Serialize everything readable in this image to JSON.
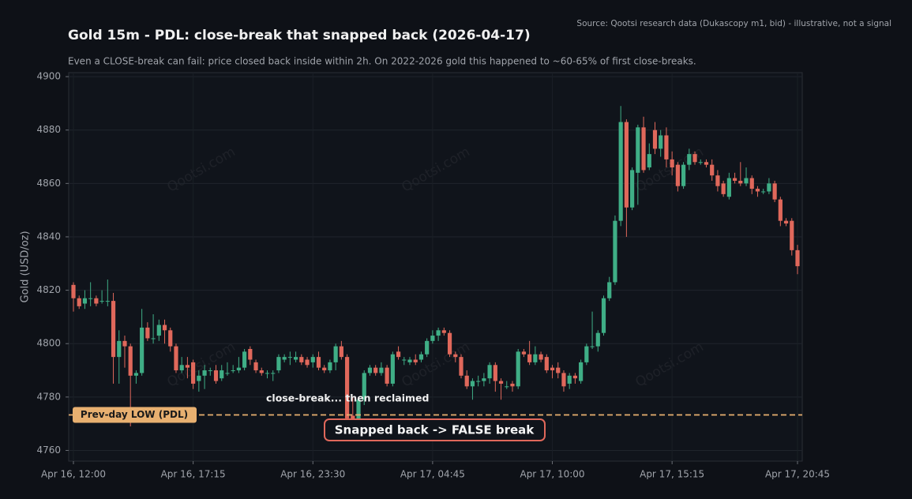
{
  "chart_data": {
    "type": "candlestick",
    "title": "Gold 15m - PDL: close-break that snapped back (2026-04-17)",
    "subtitle": "Even a CLOSE-break can fail: price closed back inside within 2h. On 2022-2026 gold this happened to ~60-65% of first close-breaks.",
    "source": "Source: Qootsi research data (Dukascopy m1, bid) - illustrative, not a signal",
    "watermark": "Qootsi.com",
    "y_label": "Gold (USD/oz)",
    "categories": [
      "Apr 16, 12:00",
      null,
      null,
      null,
      null,
      null,
      null,
      null,
      null,
      null,
      null,
      null,
      null,
      null,
      null,
      null,
      null,
      null,
      null,
      null,
      null,
      "Apr 16, 17:15",
      null,
      null,
      null,
      null,
      null,
      null,
      null,
      null,
      null,
      null,
      null,
      null,
      null,
      null,
      null,
      null,
      null,
      null,
      null,
      null,
      "Apr 16, 23:30",
      null,
      null,
      null,
      null,
      null,
      null,
      null,
      null,
      null,
      null,
      null,
      null,
      null,
      null,
      null,
      null,
      null,
      null,
      null,
      null,
      "Apr 17, 04:45",
      null,
      null,
      null,
      null,
      null,
      null,
      null,
      null,
      null,
      null,
      null,
      null,
      null,
      null,
      null,
      null,
      null,
      null,
      null,
      null,
      "Apr 17, 10:00",
      null,
      null,
      null,
      null,
      null,
      null,
      null,
      null,
      null,
      null,
      null,
      null,
      null,
      null,
      null,
      null,
      null,
      null,
      null,
      null,
      "Apr 17, 15:15",
      null,
      null,
      null,
      null,
      null,
      null,
      null,
      null,
      null,
      null,
      null,
      null,
      null,
      null,
      null,
      null,
      null,
      null,
      null,
      null,
      null,
      "Apr 17, 20:45"
    ],
    "open": [
      4822,
      4817,
      4815,
      4817,
      4817,
      4816,
      4816,
      4816,
      4795,
      4801,
      4799,
      4788,
      4789,
      4806,
      4802,
      4803,
      4807,
      4805,
      4799,
      4790,
      4792,
      4793,
      4786,
      4788,
      4790,
      4790,
      4787,
      4789,
      4790,
      4790,
      4791,
      4798,
      4793,
      4790,
      4789,
      4789,
      4790,
      4794,
      4795,
      4794,
      4795,
      4794,
      4793,
      4795,
      4791,
      4790,
      4793,
      4799,
      4795,
      4773,
      4771,
      4779,
      4789,
      4791,
      4789,
      4791,
      4785,
      4797,
      4794,
      4793,
      4794,
      4794,
      4796,
      4801,
      4803,
      4805,
      4804,
      4796,
      4795,
      4788,
      4784,
      4786,
      4786,
      4787,
      4792,
      4786,
      4784,
      4785,
      4784,
      4797,
      4796,
      4793,
      4796,
      4795,
      4791,
      4791,
      4789,
      4785,
      4788,
      4786,
      4793,
      4799,
      4799,
      4804,
      4817,
      4823,
      4846,
      4883,
      4851,
      4864,
      4881,
      4866,
      4880,
      4873,
      4878,
      4869,
      4867,
      4859,
      4867,
      4871,
      4868,
      4868,
      4867,
      4863,
      4860,
      4855,
      4862,
      4861,
      4860,
      4862,
      4858,
      4857,
      4857,
      4860,
      4854,
      4846,
      4846,
      4835
    ],
    "high": [
      4823,
      4818,
      4820,
      4823,
      4818,
      4820,
      4824,
      4819,
      4805,
      4803,
      4800,
      4790,
      4813,
      4808,
      4811,
      4809,
      4809,
      4806,
      4800,
      4795,
      4795,
      4794,
      4790,
      4792,
      4791,
      4792,
      4792,
      4793,
      4792,
      4795,
      4798,
      4799,
      4794,
      4791,
      4790,
      4790,
      4796,
      4796,
      4797,
      4797,
      4796,
      4795,
      4796,
      4797,
      4792,
      4794,
      4800,
      4801,
      4796,
      4780,
      4780,
      4790,
      4792,
      4792,
      4793,
      4792,
      4797,
      4799,
      4795,
      4795,
      4796,
      4797,
      4802,
      4805,
      4806,
      4806,
      4805,
      4797,
      4796,
      4790,
      4787,
      4788,
      4789,
      4793,
      4793,
      4787,
      4786,
      4786,
      4798,
      4798,
      4801,
      4799,
      4797,
      4796,
      4792,
      4793,
      4790,
      4789,
      4789,
      4794,
      4800,
      4812,
      4805,
      4818,
      4825,
      4848,
      4889,
      4884,
      4866,
      4882,
      4885,
      4875,
      4883,
      4880,
      4881,
      4872,
      4868,
      4868,
      4873,
      4872,
      4869,
      4869,
      4869,
      4865,
      4861,
      4864,
      4864,
      4868,
      4866,
      4863,
      4859,
      4858,
      4862,
      4861,
      4855,
      4847,
      4847,
      4837
    ],
    "low": [
      4812,
      4813,
      4813,
      4814,
      4814,
      4815,
      4814,
      4785,
      4785,
      4791,
      4769,
      4785,
      4788,
      4801,
      4800,
      4801,
      4800,
      4797,
      4789,
      4789,
      4787,
      4783,
      4782,
      4783,
      4788,
      4785,
      4786,
      4788,
      4789,
      4789,
      4790,
      4792,
      4789,
      4788,
      4787,
      4786,
      4789,
      4793,
      4792,
      4793,
      4792,
      4791,
      4791,
      4790,
      4789,
      4789,
      4790,
      4794,
      4768,
      4768,
      4769,
      4777,
      4788,
      4788,
      4788,
      4784,
      4784,
      4794,
      4792,
      4792,
      4792,
      4793,
      4795,
      4800,
      4801,
      4803,
      4795,
      4793,
      4787,
      4783,
      4779,
      4784,
      4784,
      4785,
      4782,
      4779,
      4783,
      4782,
      4783,
      4795,
      4792,
      4792,
      4793,
      4789,
      4787,
      4787,
      4782,
      4783,
      4785,
      4785,
      4792,
      4798,
      4797,
      4803,
      4816,
      4822,
      4844,
      4840,
      4850,
      4852,
      4864,
      4865,
      4871,
      4870,
      4866,
      4863,
      4857,
      4858,
      4865,
      4867,
      4867,
      4866,
      4861,
      4857,
      4855,
      4854,
      4860,
      4859,
      4859,
      4856,
      4855,
      4856,
      4856,
      4853,
      4844,
      4844,
      4833,
      4826
    ],
    "close": [
      4817,
      4814,
      4817,
      4817,
      4815,
      4816,
      4816,
      4795,
      4801,
      4799,
      4788,
      4789,
      4806,
      4802,
      4802,
      4807,
      4805,
      4799,
      4790,
      4792,
      4791,
      4785,
      4788,
      4790,
      4790,
      4786,
      4790,
      4789,
      4790,
      4791,
      4797,
      4794,
      4790,
      4789,
      4789,
      4789,
      4795,
      4795,
      4795,
      4795,
      4793,
      4792,
      4795,
      4791,
      4790,
      4793,
      4799,
      4795,
      4772,
      4771,
      4779,
      4789,
      4791,
      4789,
      4791,
      4785,
      4796,
      4795,
      4794,
      4794,
      4793,
      4796,
      4801,
      4803,
      4805,
      4804,
      4796,
      4795,
      4788,
      4784,
      4786,
      4786,
      4787,
      4792,
      4786,
      4785,
      4784,
      4784,
      4797,
      4796,
      4793,
      4796,
      4794,
      4790,
      4790,
      4789,
      4784,
      4788,
      4787,
      4793,
      4799,
      4799,
      4804,
      4817,
      4823,
      4846,
      4883,
      4851,
      4865,
      4881,
      4865,
      4871,
      4873,
      4878,
      4869,
      4866,
      4859,
      4867,
      4871,
      4868,
      4868,
      4867,
      4863,
      4859,
      4856,
      4862,
      4861,
      4860,
      4862,
      4858,
      4857,
      4857,
      4860,
      4854,
      4846,
      4845,
      4835,
      4829
    ],
    "up_color": "#3fae86",
    "down_color": "#e0685b",
    "ylim": [
      4756,
      4901.5
    ],
    "yticks": [
      4760,
      4780,
      4800,
      4820,
      4840,
      4860,
      4880,
      4900
    ],
    "grid": true,
    "pdl": {
      "label": "Prev-day LOW (PDL)",
      "value": 4773.3,
      "color": "#e8b070"
    },
    "annotations": [
      "close-break... then reclaimed",
      "Snapped back -> FALSE break"
    ]
  }
}
